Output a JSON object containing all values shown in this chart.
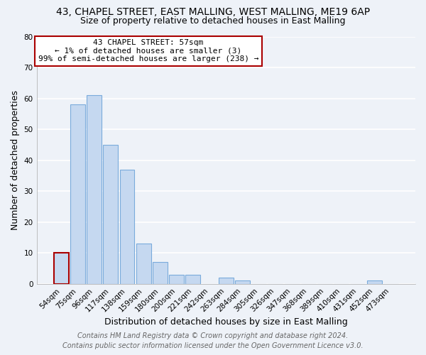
{
  "title1": "43, CHAPEL STREET, EAST MALLING, WEST MALLING, ME19 6AP",
  "title2": "Size of property relative to detached houses in East Malling",
  "xlabel": "Distribution of detached houses by size in East Malling",
  "ylabel": "Number of detached properties",
  "bar_labels": [
    "54sqm",
    "75sqm",
    "96sqm",
    "117sqm",
    "138sqm",
    "159sqm",
    "180sqm",
    "200sqm",
    "221sqm",
    "242sqm",
    "263sqm",
    "284sqm",
    "305sqm",
    "326sqm",
    "347sqm",
    "368sqm",
    "389sqm",
    "410sqm",
    "431sqm",
    "452sqm",
    "473sqm"
  ],
  "bar_values": [
    10,
    58,
    61,
    45,
    37,
    13,
    7,
    3,
    3,
    0,
    2,
    1,
    0,
    0,
    0,
    0,
    0,
    0,
    0,
    1,
    0
  ],
  "bar_color": "#c5d8f0",
  "bar_edge_color": "#7aabdc",
  "highlight_bar_index": 0,
  "highlight_edge_color": "#aa0000",
  "annotation_title": "43 CHAPEL STREET: 57sqm",
  "annotation_line1": "← 1% of detached houses are smaller (3)",
  "annotation_line2": "99% of semi-detached houses are larger (238) →",
  "annotation_box_color": "white",
  "annotation_box_edge_color": "#aa0000",
  "ylim": [
    0,
    80
  ],
  "yticks": [
    0,
    10,
    20,
    30,
    40,
    50,
    60,
    70,
    80
  ],
  "footer1": "Contains HM Land Registry data © Crown copyright and database right 2024.",
  "footer2": "Contains public sector information licensed under the Open Government Licence v3.0.",
  "background_color": "#eef2f8",
  "grid_color": "white",
  "title_fontsize": 10,
  "subtitle_fontsize": 9,
  "axis_label_fontsize": 9,
  "tick_fontsize": 7.5,
  "annotation_fontsize": 8,
  "footer_fontsize": 7
}
